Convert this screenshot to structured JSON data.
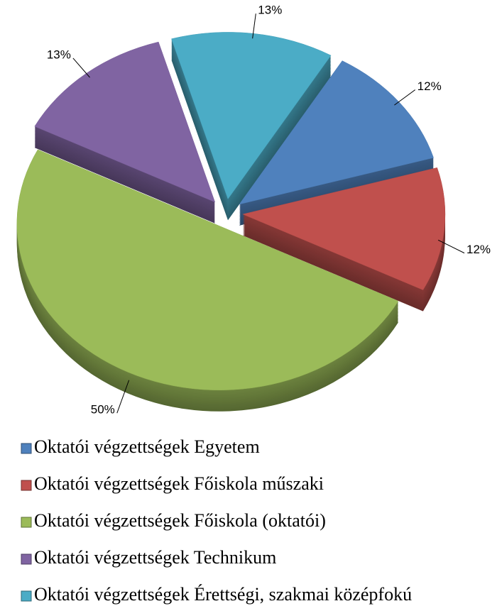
{
  "chart_data": {
    "type": "pie",
    "categories": [
      "Oktatói végzettségek Egyetem",
      "Oktatói végzettségek Főiskola műszaki",
      "Oktatói végzettségek Főiskola (oktatói)",
      "Oktatói végzettségek Technikum",
      "Oktatói végzettségek Érettségi, szakmai középfokú"
    ],
    "values": [
      12,
      12,
      50,
      13,
      13
    ],
    "value_labels": [
      "12%",
      "12%",
      "50%",
      "13%",
      "13%"
    ],
    "colors": [
      "#4f81bd",
      "#c0504d",
      "#9bbb59",
      "#8064a2",
      "#4bacc6"
    ],
    "legend": "bottom"
  }
}
